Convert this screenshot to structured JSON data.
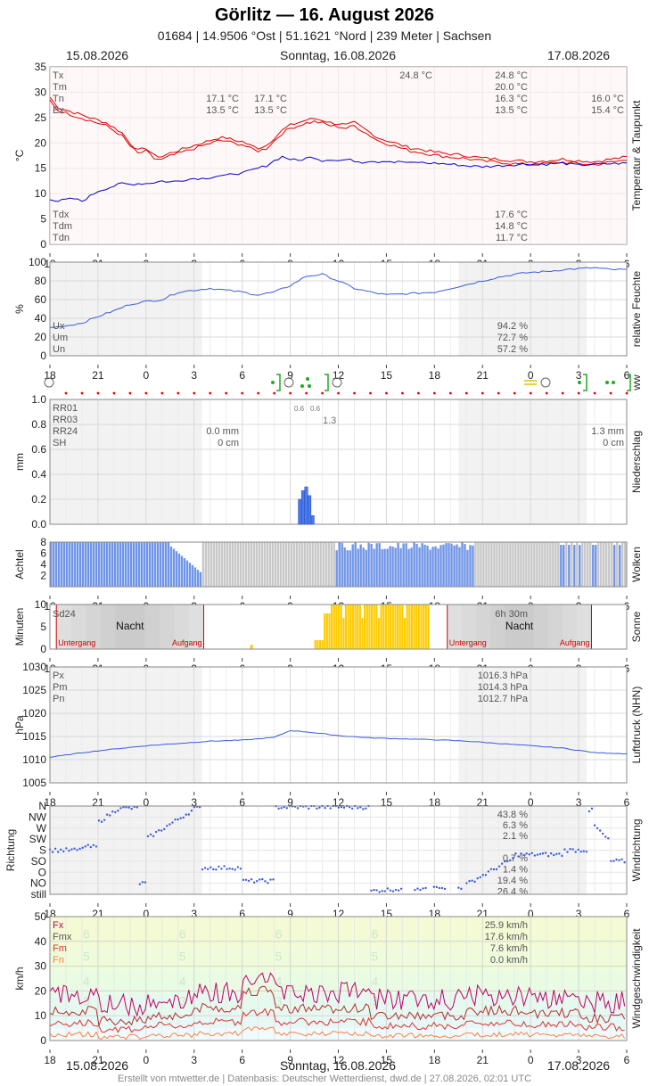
{
  "header": {
    "title": "Görlitz  —  16. August 2026",
    "subtitle": "01684  |  14.9506 °Ost  |  51.1621 °Nord  |  239 Meter  |  Sachsen",
    "date_left": "15.08.2026",
    "date_center": "Sonntag, 16.08.2026",
    "date_right": "17.08.2026"
  },
  "footer": "Erstellt von mtwetter.de | Datenbasis: Deutscher Wetterdienst, dwd.de | 27.08.2026, 02:01 UTC",
  "x_ticks": [
    "18",
    "21",
    "0",
    "3",
    "6",
    "9",
    "12",
    "15",
    "18",
    "21",
    "0",
    "3",
    "6"
  ],
  "panels": {
    "temp": {
      "ylabel": "°C",
      "side": "Temperatur & Taupunkt",
      "yticks": [
        "0",
        "5",
        "10",
        "15",
        "20",
        "25",
        "30",
        "35"
      ],
      "top_labels": [
        "Tx",
        "Tm",
        "Tn",
        "Ex"
      ],
      "bottom_labels": [
        "Tdx",
        "Tdm",
        "Tdn"
      ],
      "day1_vals": [
        "17.1 °C",
        "13.5 °C"
      ],
      "day1b_vals": [
        "17.1 °C",
        "13.5 °C"
      ],
      "peak_label": "24.8 °C",
      "day2_vals": [
        "24.8 °C",
        "20.0 °C",
        "16.3 °C",
        "13.5 °C"
      ],
      "day3_vals": [
        "16.0 °C",
        "15.4 °C"
      ],
      "dew_vals": [
        "17.6 °C",
        "14.8 °C",
        "11.7 °C"
      ]
    },
    "humidity": {
      "ylabel": "%",
      "side": "relative Feuchte",
      "yticks": [
        "0",
        "20",
        "40",
        "60",
        "80",
        "100"
      ],
      "labels": [
        "Ux",
        "Um",
        "Un"
      ],
      "vals": [
        "94.2 %",
        "72.7 %",
        "57.2 %"
      ]
    },
    "ww": {
      "side": "ww"
    },
    "precip": {
      "ylabel": "mm",
      "side": "Niederschlag",
      "yticks": [
        "0.0",
        "0.2",
        "0.4",
        "0.6",
        "0.8",
        "1.0"
      ],
      "labels": [
        "RR01",
        "RR03",
        "RR24",
        "SH"
      ],
      "day1_vals": [
        "0.0 mm",
        "0 cm"
      ],
      "day3_vals": [
        "1.3 mm",
        "0 cm"
      ],
      "small1": "0.6",
      "small2": "0.6",
      "rr03": "1.3"
    },
    "clouds": {
      "ylabel": "Achtel",
      "side": "Wolken",
      "yticks": [
        "2",
        "4",
        "6",
        "8"
      ]
    },
    "sun": {
      "ylabel": "Minuten",
      "side": "Sonne",
      "yticks": [
        "0",
        "5",
        "10"
      ],
      "sd_label": "Sd24",
      "sd_val": "6h 30m",
      "night": "Nacht",
      "sunset": "Untergang",
      "sunrise": "Aufgang"
    },
    "pressure": {
      "ylabel": "hPa",
      "side": "Luftdruck (NHN)",
      "yticks": [
        "1005",
        "1010",
        "1015",
        "1020",
        "1025",
        "1030"
      ],
      "labels": [
        "Px",
        "Pm",
        "Pn"
      ],
      "vals": [
        "1016.3 hPa",
        "1014.3 hPa",
        "1012.7 hPa"
      ]
    },
    "winddir": {
      "ylabel": "Richtung",
      "side": "Windrichtung",
      "yticks": [
        "still",
        "NO",
        "O",
        "SO",
        "S",
        "SW",
        "W",
        "NW",
        "N"
      ],
      "vals": [
        "43.8 %",
        "6.3 %",
        "2.1 %",
        "0.7 %",
        "1.4 %",
        "19.4 %",
        "26.4 %"
      ]
    },
    "windspeed": {
      "ylabel": "km/h",
      "side": "Windgeschwindigkeit",
      "yticks": [
        "0",
        "10",
        "20",
        "30",
        "40",
        "50"
      ],
      "labels": [
        "Fx",
        "Fmx",
        "Fm",
        "Fn"
      ],
      "vals": [
        "25.9 km/h",
        "17.6 km/h",
        "7.6 km/h",
        "0.0 km/h"
      ],
      "bft": [
        "6",
        "5",
        "4",
        "3"
      ]
    }
  },
  "colors": {
    "temp": "#e00000",
    "dew": "#0000cc",
    "humidity": "#3b5bdb",
    "precip": "#4a7af0",
    "clouds": "#6f95e8",
    "sun": "#ffcc00",
    "pressure": "#3b5bdb",
    "wind_fx": "#c0006a",
    "wind_fm": "#e03030",
    "wind_fn": "#ff8040"
  },
  "chart_data": [
    {
      "type": "line",
      "name": "temperature",
      "x_hours": [
        0,
        0.5,
        1,
        1.5,
        2,
        2.5,
        3,
        3.5,
        4,
        4.5,
        5,
        5.5,
        6,
        6.5,
        7,
        7.5,
        8,
        8.5,
        9,
        9.5,
        10,
        10.5,
        11,
        11.5,
        12,
        12.5,
        13,
        13.5,
        14,
        14.5,
        15,
        15.5,
        16,
        16.5,
        17,
        17.5,
        18,
        18.5,
        19,
        19.5,
        20,
        20.5,
        21,
        21.5,
        22,
        22.5,
        23,
        23.5,
        24,
        25,
        26,
        27,
        28,
        29,
        30,
        31,
        32,
        33,
        34,
        35,
        36
      ],
      "series": [
        {
          "name": "T",
          "values": [
            29,
            27,
            26.5,
            26,
            25.5,
            25,
            24.5,
            24,
            23,
            22,
            20,
            18.5,
            19,
            17.5,
            17.3,
            18,
            18.5,
            19,
            19.5,
            20,
            20.5,
            21,
            21,
            20.5,
            20.3,
            19.5,
            19,
            19.5,
            21,
            22.5,
            23.5,
            24,
            24.5,
            24.8,
            24.5,
            24,
            23.8,
            23.5,
            24,
            23,
            22,
            21,
            20.5,
            20,
            19.5,
            19,
            18.8,
            18.5,
            18.2,
            17.8,
            17.5,
            17,
            16.8,
            16.5,
            16.3,
            16.5,
            16.8,
            16.5,
            16.3,
            16.8,
            17.2
          ]
        },
        {
          "name": "Td",
          "values": [
            9,
            8.5,
            8.8,
            9,
            8.5,
            9.5,
            10.5,
            11,
            11.5,
            12,
            11.8,
            12,
            12,
            12.2,
            12.5,
            12.3,
            12.5,
            12.8,
            13,
            13,
            13.2,
            13.5,
            13.5,
            14,
            14,
            14.5,
            15,
            15.5,
            16.5,
            17.3,
            16.8,
            16.5,
            17,
            17.2,
            16.5,
            16.8,
            16.5,
            16.7,
            16.5,
            16.2,
            16.5,
            16.3,
            16.5,
            16.2,
            16.3,
            16,
            16.2,
            16,
            16,
            15.8,
            15.5,
            15.3,
            15.5,
            15.7,
            15.9,
            15.8,
            16,
            15.6,
            15.8,
            15.9,
            16
          ]
        }
      ],
      "ylim": [
        0,
        35
      ]
    },
    {
      "type": "line",
      "name": "humidity",
      "x_hours": [
        0,
        1,
        2,
        3,
        4,
        5,
        6,
        7,
        8,
        9,
        10,
        11,
        12,
        13,
        14,
        15,
        16,
        17,
        18,
        19,
        20,
        21,
        22,
        23,
        24,
        25,
        26,
        27,
        28,
        29,
        30,
        31,
        32,
        33,
        34,
        35,
        36
      ],
      "values": [
        30,
        32,
        35,
        42,
        48,
        55,
        58,
        60,
        68,
        70,
        72,
        70,
        68,
        65,
        68,
        75,
        85,
        87,
        80,
        72,
        68,
        65,
        66,
        67,
        68,
        72,
        76,
        80,
        84,
        87,
        89,
        90,
        92,
        93,
        94,
        92,
        92
      ],
      "ylim": [
        0,
        100
      ]
    },
    {
      "type": "bar",
      "name": "precipitation",
      "x_hours": [
        15.5,
        15.7,
        15.9,
        16.1,
        16.3
      ],
      "values": [
        0.2,
        0.27,
        0.3,
        0.23,
        0.07
      ],
      "ylim": [
        0,
        1
      ]
    },
    {
      "type": "line",
      "name": "pressure",
      "x_hours": [
        0,
        2,
        4,
        6,
        8,
        10,
        12,
        14,
        15,
        16,
        18,
        20,
        22,
        24,
        26,
        28,
        30,
        32,
        34,
        36
      ],
      "values": [
        1010.5,
        1011.5,
        1012.3,
        1013,
        1013.5,
        1014,
        1014.2,
        1014.8,
        1016.3,
        1016,
        1015.2,
        1014.7,
        1014.5,
        1014.3,
        1014,
        1013.5,
        1013,
        1012.5,
        1011.5,
        1011.3
      ],
      "ylim": [
        1005,
        1030
      ]
    },
    {
      "type": "line",
      "name": "wind",
      "series": [
        {
          "name": "Fx"
        },
        {
          "name": "Fmx"
        },
        {
          "name": "Fm"
        },
        {
          "name": "Fn"
        }
      ],
      "ylim": [
        0,
        50
      ]
    }
  ]
}
